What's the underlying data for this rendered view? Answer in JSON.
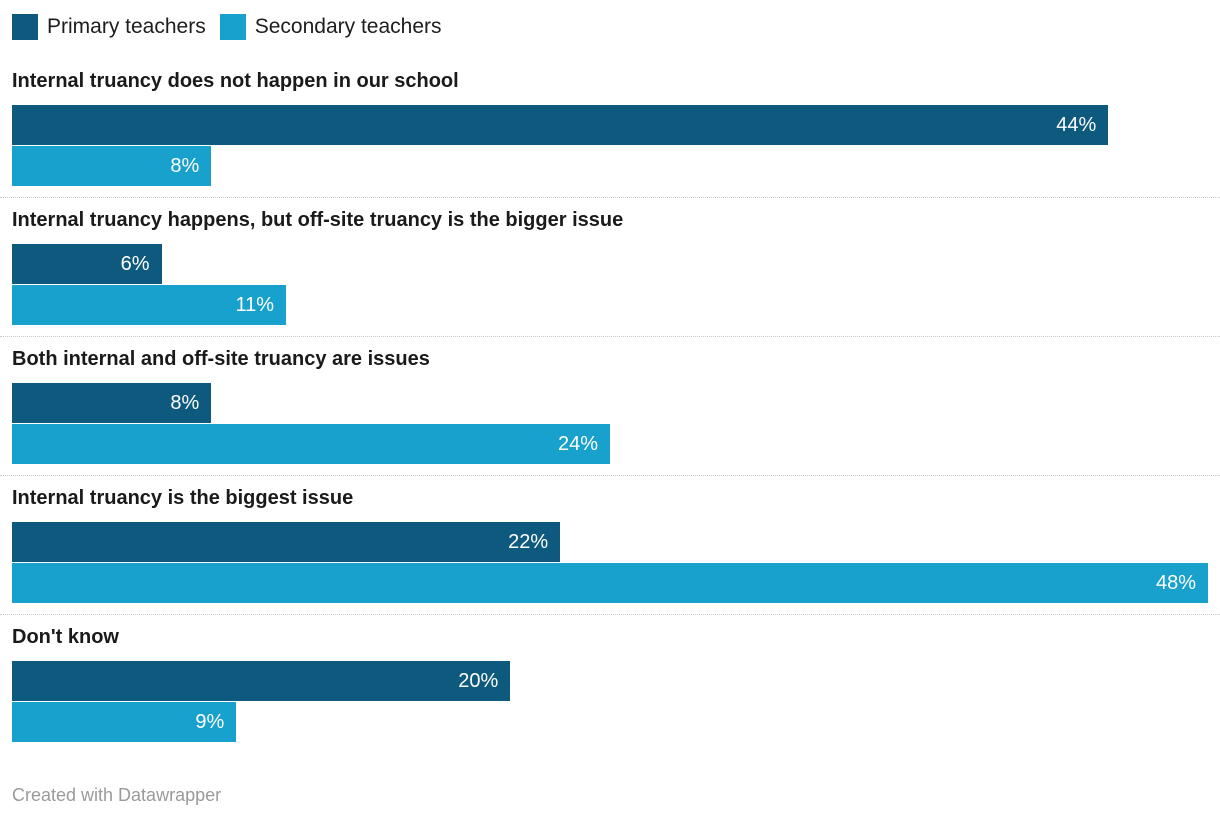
{
  "legend": {
    "items": [
      {
        "label": "Primary teachers",
        "color": "#0e5a7e"
      },
      {
        "label": "Secondary teachers",
        "color": "#18a1cd"
      }
    ]
  },
  "chart_data": {
    "type": "bar",
    "orientation": "horizontal",
    "categories": [
      "Internal truancy does not happen in our school",
      "Internal truancy happens, but off-site truancy is the bigger issue",
      "Both internal and off-site truancy are issues",
      "Internal truancy is the biggest issue",
      "Don't know"
    ],
    "series": [
      {
        "name": "Primary teachers",
        "color": "#0e5a7e",
        "values": [
          44,
          6,
          8,
          22,
          20
        ],
        "labels": [
          "44%",
          "6%",
          "8%",
          "22%",
          "20%"
        ]
      },
      {
        "name": "Secondary teachers",
        "color": "#18a1cd",
        "values": [
          8,
          11,
          24,
          48,
          9
        ],
        "labels": [
          "8%",
          "11%",
          "24%",
          "48%",
          "9%"
        ]
      }
    ],
    "value_suffix": "%",
    "axis_max": 48,
    "value_label_position": "inside-right",
    "grid": false,
    "legend_position": "top-left"
  },
  "footer": {
    "credit": "Created with Datawrapper"
  }
}
